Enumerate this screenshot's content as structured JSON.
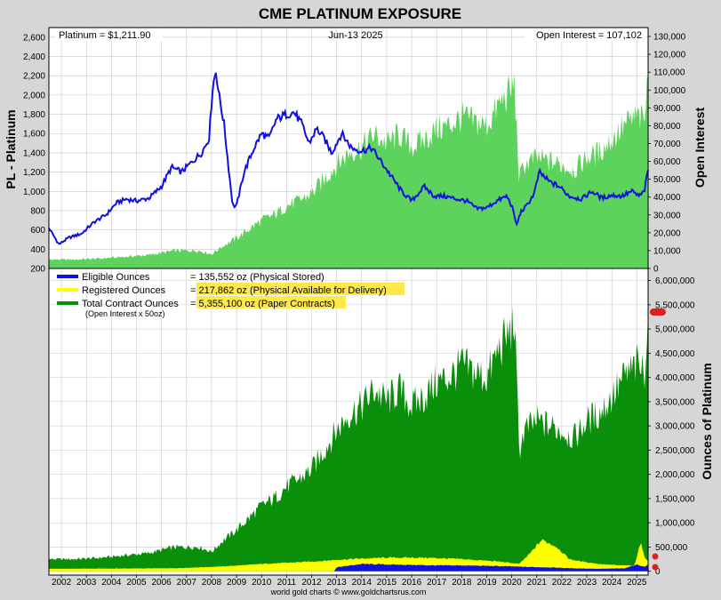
{
  "chart_data": {
    "title": "CME PLATINUM EXPOSURE",
    "header": {
      "price_label": "Platinum = $1,211.90",
      "date_label": "Jun-13  2025",
      "oi_label": "Open Interest = 107,102"
    },
    "footer": "world gold charts © www.goldchartsrus.com",
    "x_axis": {
      "tick_labels": [
        "2002",
        "2003",
        "2004",
        "2005",
        "2006",
        "2007",
        "2008",
        "2009",
        "2010",
        "2011",
        "2012",
        "2013",
        "2014",
        "2015",
        "2016",
        "2017",
        "2018",
        "2019",
        "2020",
        "2021",
        "2022",
        "2023",
        "2024",
        "2025"
      ],
      "range": [
        2001.5,
        2025.45
      ]
    },
    "top_panel": {
      "type": "line+area",
      "left_axis": {
        "label": "PL - Platinum",
        "range": [
          200,
          2700
        ],
        "ticks": [
          200,
          400,
          600,
          800,
          1000,
          1200,
          1400,
          1600,
          1800,
          2000,
          2200,
          2400,
          2600
        ],
        "tick_labels": [
          "200",
          "400",
          "600",
          "800",
          "1,000",
          "1,200",
          "1,400",
          "1,600",
          "1,800",
          "2,000",
          "2,200",
          "2,400",
          "2,600"
        ],
        "color": "#1b1bdb"
      },
      "right_axis": {
        "label": "Open Interest",
        "range": [
          0,
          135000
        ],
        "ticks": [
          0,
          10000,
          20000,
          30000,
          40000,
          50000,
          60000,
          70000,
          80000,
          90000,
          100000,
          110000,
          120000,
          130000
        ],
        "tick_labels": [
          "0",
          "10,000",
          "20,000",
          "30,000",
          "40,000",
          "50,000",
          "60,000",
          "70,000",
          "80,000",
          "90,000",
          "100,000",
          "110,000",
          "120,000",
          "130,000"
        ],
        "color": "#2a9a2a"
      },
      "series": [
        {
          "name": "Platinum",
          "color": "#1010e0",
          "x": [
            2001.5,
            2001.9,
            2002.3,
            2002.8,
            2003.3,
            2003.8,
            2004.2,
            2004.6,
            2005.0,
            2005.5,
            2006.0,
            2006.4,
            2006.8,
            2007.2,
            2007.6,
            2007.9,
            2008.05,
            2008.18,
            2008.3,
            2008.5,
            2008.7,
            2008.85,
            2009.0,
            2009.3,
            2009.7,
            2010.0,
            2010.3,
            2010.6,
            2011.0,
            2011.3,
            2011.6,
            2011.9,
            2012.2,
            2012.5,
            2012.8,
            2013.2,
            2013.6,
            2014.0,
            2014.4,
            2014.8,
            2015.2,
            2015.6,
            2016.0,
            2016.5,
            2016.9,
            2017.3,
            2017.8,
            2018.2,
            2018.6,
            2019.0,
            2019.4,
            2019.8,
            2020.0,
            2020.2,
            2020.35,
            2020.6,
            2020.9,
            2021.1,
            2021.5,
            2021.9,
            2022.3,
            2022.8,
            2023.2,
            2023.6,
            2024.0,
            2024.4,
            2024.8,
            2025.1,
            2025.3,
            2025.45
          ],
          "values": [
            620,
            450,
            520,
            560,
            680,
            760,
            880,
            920,
            900,
            930,
            1050,
            1250,
            1200,
            1300,
            1400,
            1550,
            2100,
            2250,
            2000,
            1700,
            1200,
            850,
            850,
            1200,
            1450,
            1600,
            1550,
            1750,
            1800,
            1820,
            1700,
            1500,
            1650,
            1550,
            1400,
            1600,
            1450,
            1420,
            1450,
            1300,
            1150,
            1000,
            900,
            1050,
            950,
            950,
            920,
            900,
            820,
            830,
            900,
            950,
            850,
            650,
            780,
            850,
            980,
            1200,
            1100,
            1050,
            950,
            920,
            1000,
            930,
            960,
            950,
            1000,
            950,
            1000,
            1220
          ]
        },
        {
          "name": "Open Interest",
          "color": "#5dd35d",
          "x": [
            2001.5,
            2002.5,
            2003.5,
            2004.5,
            2005.5,
            2006.5,
            2007.5,
            2008.0,
            2008.5,
            2009.0,
            2009.5,
            2010.0,
            2010.5,
            2011.0,
            2011.5,
            2012.0,
            2012.5,
            2013.0,
            2013.5,
            2014.0,
            2014.5,
            2015.0,
            2015.5,
            2016.0,
            2016.5,
            2017.0,
            2017.5,
            2018.0,
            2018.5,
            2019.0,
            2019.5,
            2020.0,
            2020.1,
            2020.3,
            2020.5,
            2021.0,
            2021.5,
            2022.0,
            2022.5,
            2023.0,
            2023.5,
            2024.0,
            2024.5,
            2025.0,
            2025.3,
            2025.45
          ],
          "values": [
            5000,
            5000,
            5500,
            6500,
            7500,
            10000,
            10000,
            8000,
            13000,
            17000,
            22000,
            27000,
            30000,
            35000,
            38000,
            42000,
            50000,
            58000,
            65000,
            68000,
            75000,
            70000,
            75000,
            68000,
            72000,
            78000,
            80000,
            85000,
            82000,
            80000,
            92000,
            100000,
            105000,
            50000,
            58000,
            62000,
            60000,
            58000,
            55000,
            62000,
            65000,
            72000,
            80000,
            85000,
            82000,
            107000
          ]
        }
      ]
    },
    "bottom_panel": {
      "type": "area",
      "right_axis": {
        "label": "Ounces of Platinum",
        "range": [
          -80000,
          6250000
        ],
        "ticks": [
          0,
          500000,
          1000000,
          1500000,
          2000000,
          2500000,
          3000000,
          3500000,
          4000000,
          4500000,
          5000000,
          5500000,
          6000000
        ],
        "tick_labels": [
          "0",
          "500,000",
          "1,000,000",
          "1,500,000",
          "2,000,000",
          "2,500,000",
          "3,000,000",
          "3,500,000",
          "4,000,000",
          "4,500,000",
          "5,000,000",
          "5,500,000",
          "6,000,000"
        ],
        "color": "#2a9a2a"
      },
      "legend": {
        "position": "top-left",
        "items": [
          {
            "name": "Eligible Ounces",
            "value": "= 135,552 oz (Physical Stored)",
            "color": "#1010e0",
            "highlight": false
          },
          {
            "name": "Registered Ounces",
            "value": "= 217,862 oz (Physical Available for Delivery)",
            "color": "#ffff00",
            "highlight": true
          },
          {
            "name": "Total Contract Ounces",
            "value": "= 5,355,100 oz (Paper Contracts)",
            "color": "#0a8f0a",
            "highlight": true
          }
        ],
        "note": "(Open Interest x 50oz)"
      },
      "series": [
        {
          "name": "Total Contract Ounces",
          "color": "#0a8f0a",
          "x": [
            2001.5,
            2002.5,
            2003.5,
            2004.5,
            2005.5,
            2006.5,
            2007.5,
            2008.0,
            2008.5,
            2009.0,
            2009.5,
            2010.0,
            2010.5,
            2011.0,
            2011.5,
            2012.0,
            2012.5,
            2013.0,
            2013.5,
            2014.0,
            2014.5,
            2015.0,
            2015.5,
            2016.0,
            2016.5,
            2017.0,
            2017.5,
            2018.0,
            2018.5,
            2019.0,
            2019.5,
            2020.0,
            2020.1,
            2020.3,
            2020.5,
            2021.0,
            2021.5,
            2022.0,
            2022.5,
            2023.0,
            2023.5,
            2024.0,
            2024.5,
            2025.0,
            2025.3,
            2025.45
          ],
          "values": [
            250000,
            250000,
            275000,
            325000,
            375000,
            500000,
            500000,
            400000,
            650000,
            850000,
            1100000,
            1350000,
            1500000,
            1750000,
            1900000,
            2100000,
            2500000,
            2900000,
            3250000,
            3400000,
            3750000,
            3500000,
            3750000,
            3400000,
            3600000,
            3900000,
            4000000,
            4250000,
            4100000,
            4000000,
            4600000,
            5000000,
            5250000,
            2500000,
            2900000,
            3100000,
            3000000,
            2900000,
            2750000,
            3100000,
            3250000,
            3600000,
            4000000,
            4250000,
            4100000,
            5355100
          ]
        },
        {
          "name": "Registered Ounces",
          "color": "#ffff00",
          "x": [
            2001.5,
            2006.5,
            2008.5,
            2010.0,
            2012.0,
            2013.5,
            2015.0,
            2016.5,
            2018.0,
            2019.5,
            2020.3,
            2020.7,
            2021.2,
            2021.8,
            2022.3,
            2022.8,
            2023.5,
            2024.3,
            2024.9,
            2025.15,
            2025.3,
            2025.45
          ],
          "values": [
            50000,
            60000,
            100000,
            150000,
            200000,
            250000,
            280000,
            280000,
            250000,
            200000,
            150000,
            350000,
            650000,
            500000,
            250000,
            200000,
            150000,
            120000,
            120000,
            600000,
            300000,
            217862
          ]
        },
        {
          "name": "Eligible Ounces",
          "color": "#1010e0",
          "x": [
            2001.5,
            2012.9,
            2013.0,
            2014.0,
            2015.0,
            2016.0,
            2017.0,
            2018.0,
            2019.0,
            2020.0,
            2020.5,
            2021.5,
            2022.5,
            2023.5,
            2024.5,
            2025.0,
            2025.3,
            2025.45
          ],
          "values": [
            0,
            0,
            80000,
            150000,
            140000,
            130000,
            120000,
            120000,
            110000,
            100000,
            90000,
            80000,
            60000,
            50000,
            60000,
            140000,
            90000,
            135552
          ]
        }
      ]
    }
  }
}
